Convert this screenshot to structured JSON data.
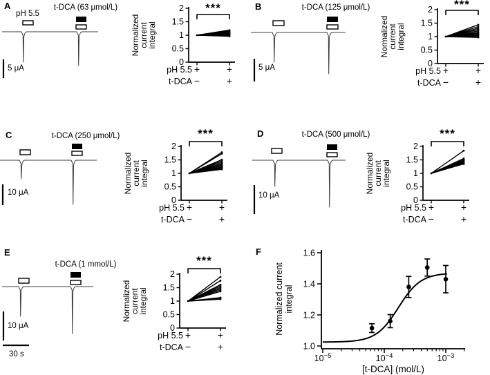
{
  "figure": {
    "background": "#ffffff",
    "ink_color": "#000000",
    "trace_color": "#3c3c3c",
    "panels": [
      "A",
      "B",
      "C",
      "D",
      "E",
      "F"
    ]
  },
  "chart_data": [
    {
      "panel": "A",
      "type": "line",
      "trace": {
        "title": "t-DCA (63 μmol/L)",
        "condition_label": "pH 5.5",
        "amplitude_scale_label": "5 μA",
        "time_scale_label": null,
        "spike_depths": [
          44,
          49
        ]
      },
      "paired_plot": {
        "type": "paired-line",
        "ylabel_lines": [
          "Normalized",
          "current",
          "integral"
        ],
        "ylim": [
          0,
          2
        ],
        "yticks": [
          "0",
          "0.5",
          "1",
          "1.5",
          "2"
        ],
        "significance": "***",
        "condition_rows": [
          {
            "label": "pH 5.5",
            "values": [
              "+",
              "+"
            ]
          },
          {
            "label": "t-DCA",
            "values": [
              "−",
              "+"
            ]
          }
        ],
        "baseline_value": 1.0,
        "post_values": [
          0.96,
          0.98,
          1.0,
          1.02,
          1.04,
          1.06,
          1.08,
          1.1,
          1.13,
          1.16,
          1.19
        ]
      }
    },
    {
      "panel": "B",
      "type": "line",
      "trace": {
        "title": "t-DCA (125 μmol/L)",
        "condition_label": null,
        "amplitude_scale_label": "5 μA",
        "time_scale_label": null,
        "spike_depths": [
          43,
          60
        ]
      },
      "paired_plot": {
        "type": "paired-line",
        "ylabel_lines": [
          "Normalized",
          "current",
          "integral"
        ],
        "ylim": [
          0,
          2
        ],
        "yticks": [
          "0",
          "0.5",
          "1",
          "1.5",
          "2"
        ],
        "significance": "***",
        "condition_rows": [
          {
            "label": "pH 5.5",
            "values": [
              "+",
              "+"
            ]
          },
          {
            "label": "t-DCA",
            "values": [
              "−",
              "+"
            ]
          }
        ],
        "baseline_value": 1.0,
        "post_values": [
          0.97,
          1.0,
          1.04,
          1.08,
          1.12,
          1.16,
          1.21,
          1.26,
          1.31,
          1.37,
          1.44
        ]
      }
    },
    {
      "panel": "C",
      "type": "line",
      "trace": {
        "title": "t-DCA (250 μmol/L)",
        "condition_label": null,
        "amplitude_scale_label": "10 μA",
        "time_scale_label": null,
        "spike_depths": [
          27,
          64
        ]
      },
      "paired_plot": {
        "type": "paired-line",
        "ylabel_lines": [
          "Normalized",
          "current",
          "integral"
        ],
        "ylim": [
          0,
          2
        ],
        "yticks": [
          "0",
          "0.5",
          "1",
          "1.5",
          "2"
        ],
        "significance": "***",
        "condition_rows": [
          {
            "label": "pH 5.5",
            "values": [
              "+",
              "+"
            ]
          },
          {
            "label": "t-DCA",
            "values": [
              "−",
              "+"
            ]
          }
        ],
        "baseline_value": 1.0,
        "post_values": [
          1.15,
          1.18,
          1.21,
          1.24,
          1.28,
          1.32,
          1.36,
          1.41,
          1.46,
          1.51,
          1.73,
          1.78
        ]
      }
    },
    {
      "panel": "D",
      "type": "line",
      "trace": {
        "title": "t-DCA (500 μmol/L)",
        "condition_label": null,
        "amplitude_scale_label": "10 μA",
        "time_scale_label": null,
        "spike_depths": [
          38,
          68
        ]
      },
      "paired_plot": {
        "type": "paired-line",
        "ylabel_lines": [
          "Normalized",
          "current",
          "integral"
        ],
        "ylim": [
          0,
          2
        ],
        "yticks": [
          "0",
          "0.5",
          "1",
          "1.5",
          "2"
        ],
        "significance": "***",
        "condition_rows": [
          {
            "label": "pH 5.5",
            "values": [
              "+",
              "+"
            ]
          },
          {
            "label": "t-DCA",
            "values": [
              "−",
              "+"
            ]
          }
        ],
        "baseline_value": 1.0,
        "post_values": [
          1.35,
          1.38,
          1.41,
          1.44,
          1.47,
          1.51,
          1.55,
          1.84
        ]
      }
    },
    {
      "panel": "E",
      "type": "line",
      "trace": {
        "title": "t-DCA (1 mmol/L)",
        "condition_label": null,
        "amplitude_scale_label": "10 μA",
        "time_scale_label": "30 s",
        "spike_depths": [
          43,
          68
        ]
      },
      "paired_plot": {
        "type": "paired-line",
        "ylabel_lines": [
          "Normalized",
          "current",
          "integral"
        ],
        "ylim": [
          0,
          2
        ],
        "yticks": [
          "0",
          "0.5",
          "1",
          "1.5",
          "2"
        ],
        "significance": "***",
        "condition_rows": [
          {
            "label": "pH 5.5",
            "values": [
              "+",
              "+"
            ]
          },
          {
            "label": "t-DCA",
            "values": [
              "−",
              "+"
            ]
          }
        ],
        "baseline_value": 1.0,
        "post_values": [
          1.07,
          1.1,
          1.13,
          1.36,
          1.41,
          1.46,
          1.51,
          1.56,
          1.61,
          1.76,
          1.9
        ]
      }
    },
    {
      "panel": "F",
      "type": "scatter",
      "ylabel_lines": [
        "Normalized current",
        "integral"
      ],
      "xlabel": "[t-DCA] (mol/L)",
      "ylim": [
        1.0,
        1.6
      ],
      "yticks": [
        "1.0",
        "1.2",
        "1.4",
        "1.6"
      ],
      "xlim": [
        1e-05,
        0.002
      ],
      "xscale": "log",
      "xticks": [
        {
          "value": 1e-05,
          "base": "10",
          "exponent": "−5"
        },
        {
          "value": 0.0001,
          "base": "10",
          "exponent": "−4"
        },
        {
          "value": 0.001,
          "base": "10",
          "exponent": "−3"
        }
      ],
      "points": [
        {
          "x": 6.3e-05,
          "y": 1.115,
          "err": 0.028
        },
        {
          "x": 0.000125,
          "y": 1.16,
          "err": 0.042
        },
        {
          "x": 0.00025,
          "y": 1.38,
          "err": 0.068
        },
        {
          "x": 0.0005,
          "y": 1.505,
          "err": 0.055
        },
        {
          "x": 0.001,
          "y": 1.43,
          "err": 0.088
        }
      ],
      "fit_curve": {
        "model": "sigmoid",
        "bottom": 1.025,
        "top": 1.47,
        "ec50": 0.00017,
        "hill": 2.4
      }
    }
  ]
}
